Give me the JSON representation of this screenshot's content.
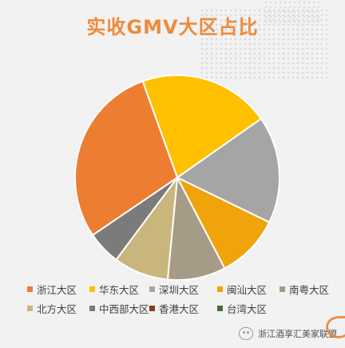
{
  "chart_data": {
    "type": "pie",
    "title": "实收GMV大区占比",
    "categories": [
      "浙江大区",
      "华东大区",
      "深圳大区",
      "闽汕大区",
      "南粤大区",
      "北方大区",
      "中西部大区",
      "香港大区",
      "台湾大区"
    ],
    "values": [
      30.0,
      21.5,
      17.5,
      10.5,
      9.5,
      9.0,
      5.5,
      0.0,
      0.0
    ],
    "unit": "%",
    "colors": [
      "#ed7d31",
      "#ffc000",
      "#a5a5a5",
      "#f0a30a",
      "#a59b86",
      "#c9b67c",
      "#7b7b7b",
      "#8a3b1f",
      "#4e6b2e"
    ],
    "legend_position": "bottom"
  },
  "watermark": {
    "text": "浙江酒享汇美家联盟",
    "icon": "wechat-icon"
  }
}
